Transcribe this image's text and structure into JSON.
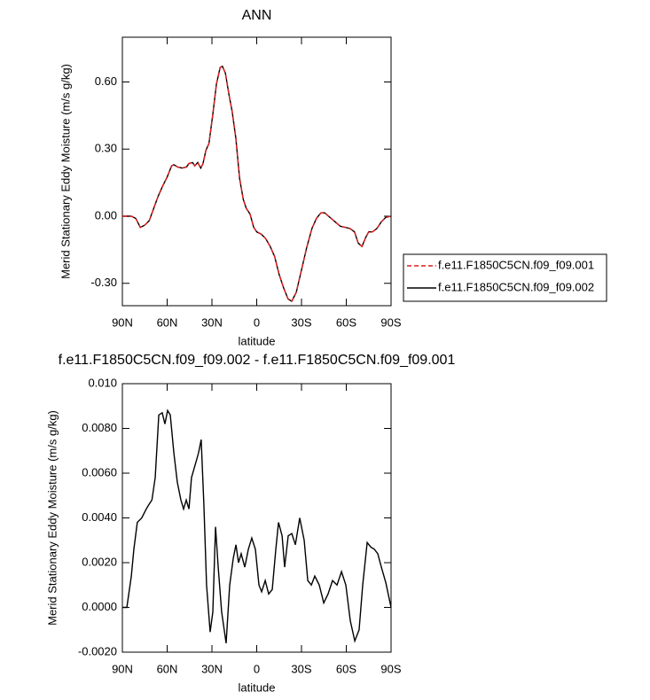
{
  "chart_data": [
    {
      "type": "line",
      "title": "ANN",
      "xlabel": "latitude",
      "ylabel": "Merid Stationary Eddy Moisture (m/s g/kg)",
      "x": [
        90,
        84,
        81,
        78,
        75,
        72,
        69,
        66,
        63,
        60,
        57,
        55.5,
        53,
        50,
        47,
        45.5,
        43,
        41.5,
        39.5,
        37.5,
        36,
        34,
        32,
        29.5,
        27,
        24.5,
        23,
        21,
        18.5,
        16.5,
        14,
        11.5,
        9,
        7,
        4.5,
        2,
        0,
        -3,
        -6,
        -9,
        -12,
        -15,
        -18,
        -21,
        -23.5,
        -26.5,
        -30,
        -33.5,
        -37,
        -40,
        -43,
        -45.5,
        -49,
        -52.5,
        -56,
        -59.5,
        -62.5,
        -65.5,
        -68,
        -70.5,
        -73,
        -75,
        -77.5,
        -80.5,
        -83.5,
        -86.5,
        -90
      ],
      "series": [
        {
          "name": "f.e11.F1850C5CN.f09_f09.001",
          "color": "#e41a1c",
          "style": "dashed",
          "values": [
            0.0,
            0.0,
            -0.01,
            -0.05,
            -0.04,
            -0.02,
            0.035,
            0.09,
            0.135,
            0.175,
            0.225,
            0.23,
            0.22,
            0.215,
            0.22,
            0.235,
            0.24,
            0.225,
            0.24,
            0.215,
            0.235,
            0.295,
            0.325,
            0.45,
            0.59,
            0.665,
            0.67,
            0.64,
            0.54,
            0.47,
            0.35,
            0.17,
            0.075,
            0.035,
            0.01,
            -0.05,
            -0.07,
            -0.08,
            -0.1,
            -0.135,
            -0.18,
            -0.26,
            -0.32,
            -0.37,
            -0.38,
            -0.34,
            -0.24,
            -0.14,
            -0.055,
            -0.01,
            0.015,
            0.015,
            -0.005,
            -0.025,
            -0.045,
            -0.05,
            -0.055,
            -0.07,
            -0.12,
            -0.135,
            -0.095,
            -0.07,
            -0.07,
            -0.055,
            -0.025,
            -0.005,
            0.0
          ]
        },
        {
          "name": "f.e11.F1850C5CN.f09_f09.002",
          "color": "#000000",
          "style": "solid",
          "values": [
            0.0,
            0.0,
            -0.01,
            -0.05,
            -0.04,
            -0.02,
            0.035,
            0.09,
            0.135,
            0.175,
            0.225,
            0.23,
            0.22,
            0.215,
            0.22,
            0.235,
            0.24,
            0.225,
            0.24,
            0.215,
            0.235,
            0.295,
            0.325,
            0.45,
            0.59,
            0.665,
            0.67,
            0.64,
            0.54,
            0.47,
            0.35,
            0.17,
            0.075,
            0.035,
            0.01,
            -0.05,
            -0.07,
            -0.08,
            -0.1,
            -0.135,
            -0.18,
            -0.26,
            -0.32,
            -0.37,
            -0.38,
            -0.34,
            -0.24,
            -0.14,
            -0.055,
            -0.01,
            0.015,
            0.015,
            -0.005,
            -0.025,
            -0.045,
            -0.05,
            -0.055,
            -0.07,
            -0.12,
            -0.135,
            -0.095,
            -0.07,
            -0.07,
            -0.055,
            -0.025,
            -0.005,
            0.0
          ]
        }
      ],
      "xlim": [
        90,
        -90
      ],
      "xticks": [
        {
          "value": 90,
          "label": "90N"
        },
        {
          "value": 60,
          "label": "60N"
        },
        {
          "value": 30,
          "label": "30N"
        },
        0,
        {
          "value": -30,
          "label": "30S"
        },
        {
          "value": -60,
          "label": "60S"
        },
        {
          "value": -90,
          "label": "90S"
        }
      ],
      "ylim": [
        -0.4,
        0.8
      ],
      "yticks": [
        {
          "value": 0.6,
          "label": "0.60"
        },
        {
          "value": 0.3,
          "label": "0.30"
        },
        {
          "value": 0,
          "label": "0.00"
        },
        {
          "value": -0.3,
          "label": "-0.30"
        }
      ],
      "legend": "right"
    },
    {
      "type": "line",
      "title": "f.e11.F1850C5CN.f09_f09.002 - f.e11.F1850C5CN.f09_f09.001",
      "xlabel": "latitude",
      "ylabel": "Merid Stationary Eddy Moisture (m/s g/kg)",
      "x": [
        90,
        87,
        84,
        82.3,
        80,
        77,
        74,
        72.2,
        70.2,
        68,
        65.6,
        63.3,
        61.5,
        59.7,
        57.9,
        55.5,
        53.2,
        50.8,
        49,
        47.2,
        45.4,
        43.7,
        40.7,
        39,
        37.2,
        35.4,
        33.6,
        31.2,
        29.4,
        27.6,
        25.8,
        23.5,
        20.5,
        18.1,
        15.7,
        13.9,
        12.2,
        10.4,
        8,
        5.6,
        3.3,
        0.9,
        -1.5,
        -3.3,
        -5.7,
        -8,
        -10.4,
        -12.8,
        -14.6,
        -17,
        -18.7,
        -21.1,
        -23.5,
        -25.9,
        -28.8,
        -31.8,
        -34.2,
        -36.6,
        -38.9,
        -41.9,
        -44.9,
        -47.8,
        -50.8,
        -53.8,
        -56.8,
        -59.7,
        -62.7,
        -65.7,
        -68.6,
        -71,
        -74,
        -76.4,
        -78.8,
        -81.1,
        -83.5,
        -86.5,
        -90
      ],
      "color": "#000000",
      "values": [
        0.0,
        0.0,
        0.0014,
        0.0026,
        0.0038,
        0.004,
        0.0044,
        0.0046,
        0.0048,
        0.0058,
        0.0086,
        0.0087,
        0.0082,
        0.0088,
        0.0086,
        0.0069,
        0.0056,
        0.0048,
        0.0044,
        0.0048,
        0.0044,
        0.0058,
        0.0065,
        0.0069,
        0.0075,
        0.0046,
        0.001,
        -0.0011,
        -0.0002,
        0.0036,
        0.0018,
        -0.0002,
        -0.0016,
        0.001,
        0.0022,
        0.0028,
        0.002,
        0.0024,
        0.0018,
        0.0026,
        0.0031,
        0.0026,
        0.001,
        0.0007,
        0.0012,
        0.0006,
        0.0008,
        0.0026,
        0.0038,
        0.0032,
        0.0018,
        0.0032,
        0.0033,
        0.0028,
        0.004,
        0.003,
        0.0012,
        0.001,
        0.0014,
        0.001,
        0.0002,
        0.0006,
        0.0012,
        0.001,
        0.0016,
        0.001,
        -0.0006,
        -0.0015,
        -0.001,
        0.001,
        0.0029,
        0.0027,
        0.0026,
        0.0024,
        0.0018,
        0.0011,
        0.0
      ],
      "xlim": [
        90,
        -90
      ],
      "xticks": [
        {
          "value": 90,
          "label": "90N"
        },
        {
          "value": 60,
          "label": "60N"
        },
        {
          "value": 30,
          "label": "30N"
        },
        0,
        {
          "value": -30,
          "label": "30S"
        },
        {
          "value": -60,
          "label": "60S"
        },
        {
          "value": -90,
          "label": "90S"
        }
      ],
      "ylim": [
        -0.002,
        0.01
      ],
      "yticks": [
        {
          "value": 0.01,
          "label": "0.010"
        },
        {
          "value": 0.008,
          "label": "0.0080"
        },
        {
          "value": 0.006,
          "label": "0.0060"
        },
        {
          "value": 0.004,
          "label": "0.0040"
        },
        {
          "value": 0.002,
          "label": "0.0020"
        },
        {
          "value": 0,
          "label": "0.0000"
        },
        {
          "value": -0.002,
          "label": "-0.0020"
        }
      ]
    }
  ]
}
